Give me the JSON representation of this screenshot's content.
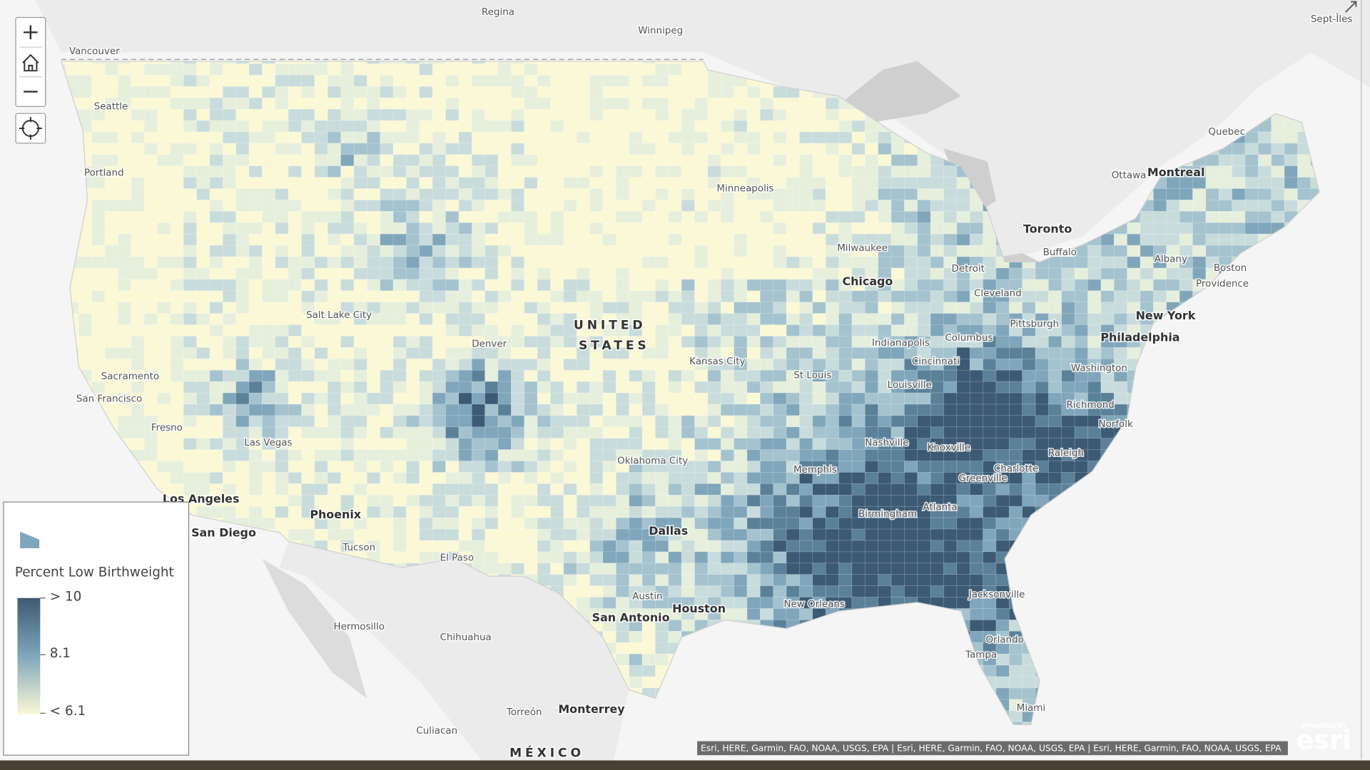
{
  "map": {
    "places": [
      {
        "label": "Regina"
      },
      {
        "label": "Winnipeg"
      },
      {
        "label": "Vancouver"
      },
      {
        "label": "Seattle"
      },
      {
        "label": "Portland"
      },
      {
        "label": "Sacramento"
      },
      {
        "label": "San Francisco"
      },
      {
        "label": "Fresno"
      },
      {
        "label": "Las Vegas"
      },
      {
        "label": "Los Angeles"
      },
      {
        "label": "San Diego"
      },
      {
        "label": "Phoenix"
      },
      {
        "label": "Tucson"
      },
      {
        "label": "Salt Lake City"
      },
      {
        "label": "Denver"
      },
      {
        "label": "Hermosillo"
      },
      {
        "label": "Chihuahua"
      },
      {
        "label": "Torreón"
      },
      {
        "label": "Monterrey"
      },
      {
        "label": "Culiacan"
      },
      {
        "label": "MÉXICO"
      },
      {
        "label": "El Paso"
      },
      {
        "label": "UNITED"
      },
      {
        "label": "STATES"
      },
      {
        "label": "Kansas City"
      },
      {
        "label": "Oklahoma City"
      },
      {
        "label": "Dallas"
      },
      {
        "label": "Austin"
      },
      {
        "label": "San Antonio"
      },
      {
        "label": "Houston"
      },
      {
        "label": "New Orleans"
      },
      {
        "label": "Minneapolis"
      },
      {
        "label": "Milwaukee"
      },
      {
        "label": "Chicago"
      },
      {
        "label": "St Louis"
      },
      {
        "label": "Indianapolis"
      },
      {
        "label": "Louisville"
      },
      {
        "label": "Nashville"
      },
      {
        "label": "Memphis"
      },
      {
        "label": "Birmingham"
      },
      {
        "label": "Atlanta"
      },
      {
        "label": "Knoxville"
      },
      {
        "label": "Cincinnati"
      },
      {
        "label": "Columbus"
      },
      {
        "label": "Detroit"
      },
      {
        "label": "Cleveland"
      },
      {
        "label": "Pittsburgh"
      },
      {
        "label": "Toronto"
      },
      {
        "label": "Buffalo"
      },
      {
        "label": "Ottawa"
      },
      {
        "label": "Montreal"
      },
      {
        "label": "Quebec"
      },
      {
        "label": "Sept-Îles"
      },
      {
        "label": "Albany"
      },
      {
        "label": "Boston"
      },
      {
        "label": "Providence"
      },
      {
        "label": "New York"
      },
      {
        "label": "Philadelphia"
      },
      {
        "label": "Washington"
      },
      {
        "label": "Richmond"
      },
      {
        "label": "Norfolk"
      },
      {
        "label": "Raleigh"
      },
      {
        "label": "Charlotte"
      },
      {
        "label": "Greenville"
      },
      {
        "label": "Jacksonville"
      },
      {
        "label": "Orlando"
      },
      {
        "label": "Tampa"
      },
      {
        "label": "Miami"
      }
    ]
  },
  "legend": {
    "title": "Percent Low Birthweight",
    "labels": [
      "> 10",
      "8.1",
      "< 6.1"
    ]
  },
  "attribution": "Esri, HERE, Garmin, FAO, NOAA, USGS, EPA | Esri, HERE, Garmin, FAO, NOAA, USGS, EPA | Esri, HERE, Garmin, FAO, NOAA, USGS, EPA",
  "logo": {
    "caption": "POWERED BY",
    "brand": "esri"
  }
}
